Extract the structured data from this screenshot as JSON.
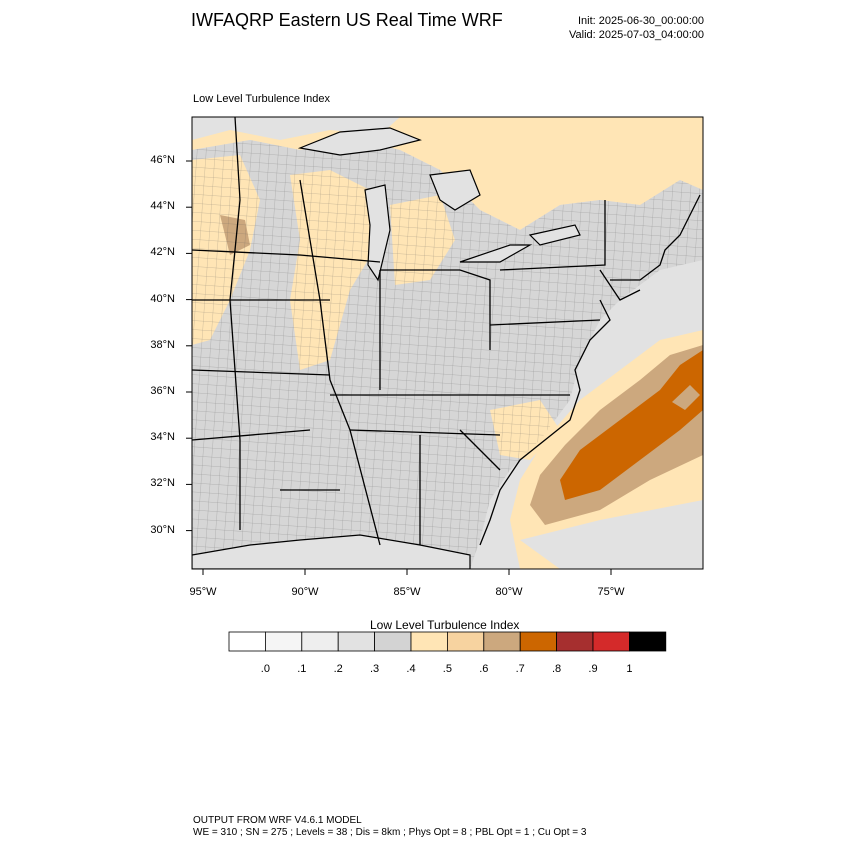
{
  "header": {
    "title": "IWFAQRP Eastern US Real Time WRF",
    "init": "Init: 2025-06-30_00:00:00",
    "valid": "Valid: 2025-07-03_04:00:00"
  },
  "map": {
    "title": "Low Level Turbulence Index",
    "lat_labels": [
      {
        "text": "46°N",
        "lat": 46
      },
      {
        "text": "44°N",
        "lat": 44
      },
      {
        "text": "42°N",
        "lat": 42
      },
      {
        "text": "40°N",
        "lat": 40
      },
      {
        "text": "38°N",
        "lat": 38
      },
      {
        "text": "36°N",
        "lat": 36
      },
      {
        "text": "34°N",
        "lat": 34
      },
      {
        "text": "32°N",
        "lat": 32
      },
      {
        "text": "30°N",
        "lat": 30
      }
    ],
    "lon_labels": [
      {
        "text": "95°W",
        "lon": -95
      },
      {
        "text": "90°W",
        "lon": -90
      },
      {
        "text": "85°W",
        "lon": -85
      },
      {
        "text": "80°W",
        "lon": -80
      },
      {
        "text": "75°W",
        "lon": -75
      }
    ]
  },
  "colorbar": {
    "title": "Low Level Turbulence Index",
    "colors": [
      "#ffffff",
      "#f5f5f5",
      "#eeeeee",
      "#e2e2e2",
      "#d3d3d3",
      "#ffe5b5",
      "#f7d3a0",
      "#cca87e",
      "#cc6600",
      "#a62f2f",
      "#d42a2a",
      "#000000"
    ],
    "labels": [
      ".0",
      ".1",
      ".2",
      ".3",
      ".4",
      ".5",
      ".6",
      ".7",
      ".8",
      ".9",
      "1"
    ]
  },
  "footer": {
    "line1": "OUTPUT FROM WRF V4.6.1 MODEL",
    "line2": "WE = 310 ; SN = 275 ; Levels = 38 ; Dis = 8km ; Phys Opt = 8 ; PBL Opt = 1 ; Cu Opt = 3"
  }
}
